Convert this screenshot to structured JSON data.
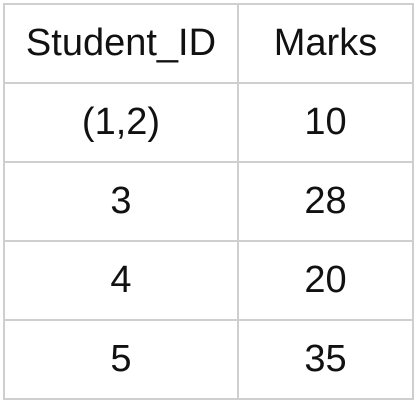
{
  "table": {
    "headers": [
      "Student_ID",
      "Marks"
    ],
    "rows": [
      [
        "(1,2)",
        "10"
      ],
      [
        "3",
        "28"
      ],
      [
        "4",
        "20"
      ],
      [
        "5",
        "35"
      ]
    ]
  }
}
